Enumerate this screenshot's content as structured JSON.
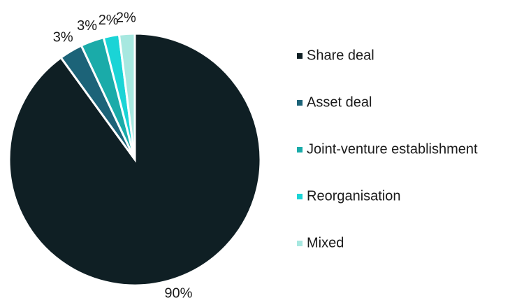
{
  "chart_data": {
    "type": "pie",
    "categories": [
      "Share deal",
      "Asset deal",
      "Joint-venture establishment",
      "Reorganisation",
      "Mixed"
    ],
    "values": [
      90,
      3,
      3,
      2,
      2
    ],
    "value_labels": [
      "90%",
      "3%",
      "3%",
      "2%",
      "2%"
    ],
    "colors": [
      "#0f1f24",
      "#1c6378",
      "#1aaba9",
      "#1ad4d6",
      "#a7e8e0"
    ],
    "legend": "right"
  }
}
